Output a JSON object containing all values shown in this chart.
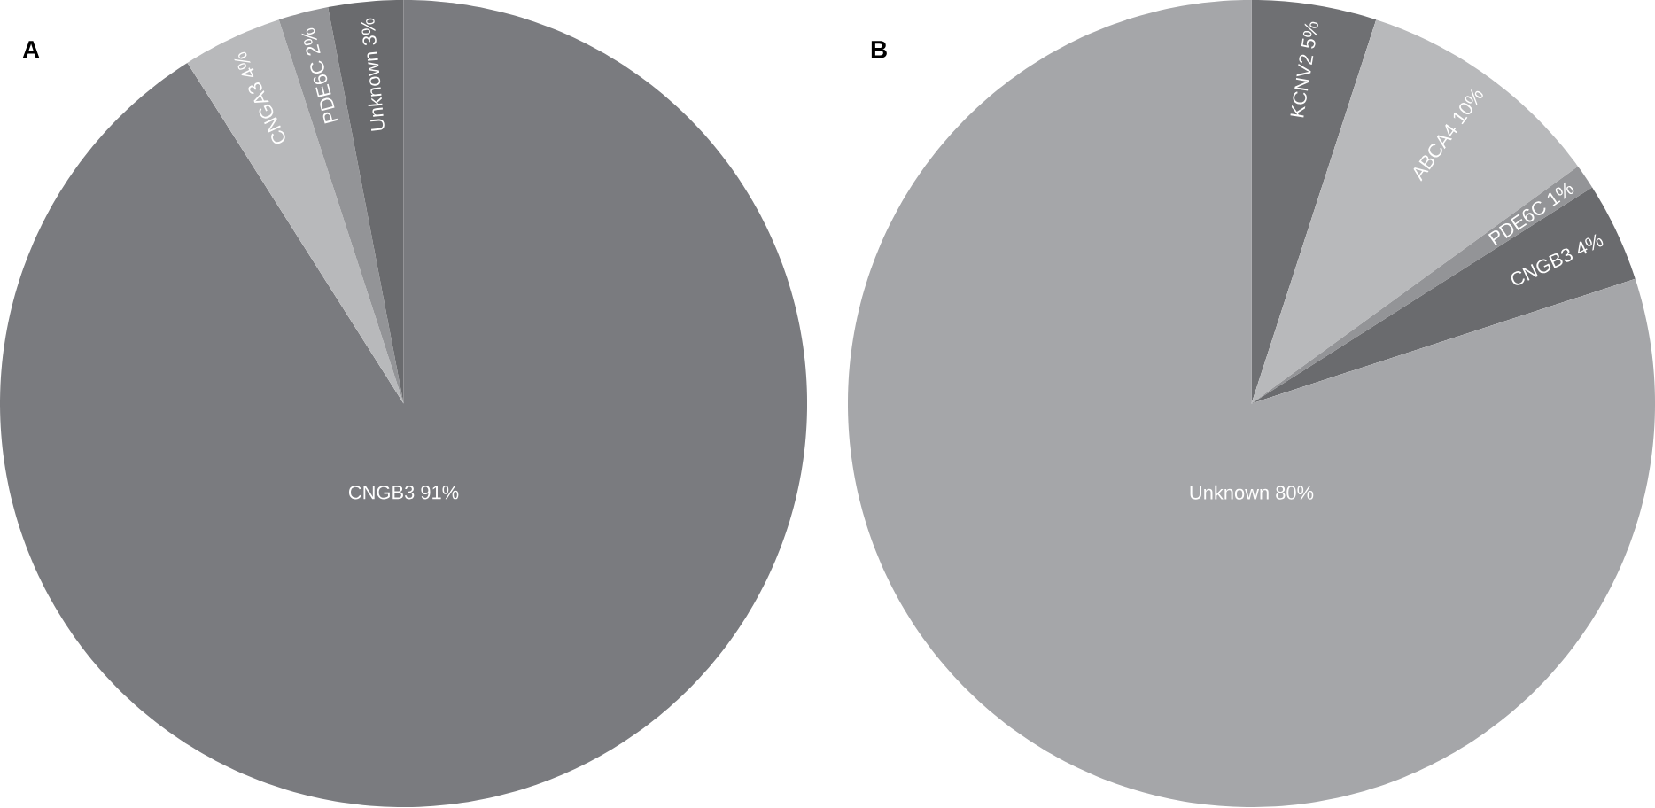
{
  "chart_data": [
    {
      "type": "pie",
      "title": "A",
      "categories": [
        "CNGB3",
        "CNGA3",
        "PDE6C",
        "Unknown"
      ],
      "values": [
        91,
        4,
        2,
        3
      ],
      "value_labels": [
        "91%",
        "4%",
        "2%",
        "3%"
      ],
      "colors": [
        "#7a7b7f",
        "#b8b9bb",
        "#939497",
        "#6a6b6e"
      ]
    },
    {
      "type": "pie",
      "title": "B",
      "categories": [
        "KCNV2",
        "ABCA4",
        "PDE6C",
        "CNGB3",
        "Unknown"
      ],
      "values": [
        5,
        10,
        1,
        4,
        80
      ],
      "value_labels": [
        "5%",
        "10%",
        "1%",
        "4%",
        "80%"
      ],
      "colors": [
        "#6f7073",
        "#b8b9bb",
        "#939497",
        "#6a6b6e",
        "#a5a6a9"
      ]
    }
  ]
}
